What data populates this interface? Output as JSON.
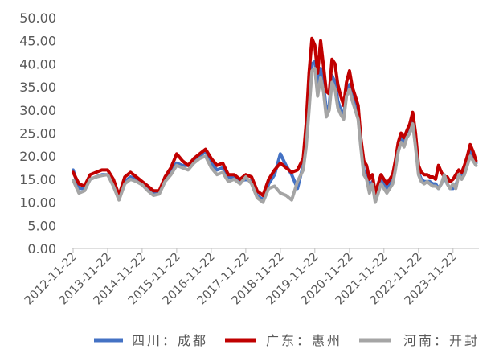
{
  "chart_data": {
    "type": "line",
    "x": [
      "2012-11-22",
      "2013-01-22",
      "2013-03-22",
      "2013-05-22",
      "2013-07-22",
      "2013-09-22",
      "2013-11-22",
      "2014-01-22",
      "2014-03-22",
      "2014-05-22",
      "2014-07-22",
      "2014-09-22",
      "2014-11-22",
      "2015-01-22",
      "2015-03-22",
      "2015-05-22",
      "2015-07-22",
      "2015-09-22",
      "2015-11-22",
      "2016-01-22",
      "2016-03-22",
      "2016-05-22",
      "2016-07-22",
      "2016-09-22",
      "2016-11-22",
      "2017-01-22",
      "2017-03-22",
      "2017-05-22",
      "2017-07-22",
      "2017-09-22",
      "2017-11-22",
      "2018-01-22",
      "2018-03-22",
      "2018-05-22",
      "2018-07-22",
      "2018-09-22",
      "2018-11-22",
      "2019-01-22",
      "2019-03-22",
      "2019-05-22",
      "2019-07-22",
      "2019-08-22",
      "2019-09-22",
      "2019-10-22",
      "2019-11-22",
      "2019-12-22",
      "2020-01-22",
      "2020-02-22",
      "2020-03-22",
      "2020-04-22",
      "2020-05-22",
      "2020-06-22",
      "2020-07-22",
      "2020-08-22",
      "2020-09-22",
      "2020-10-22",
      "2020-11-22",
      "2020-12-22",
      "2021-01-22",
      "2021-02-22",
      "2021-03-22",
      "2021-04-22",
      "2021-05-22",
      "2021-06-22",
      "2021-07-22",
      "2021-08-22",
      "2021-09-22",
      "2021-10-22",
      "2021-11-22",
      "2021-12-22",
      "2022-01-22",
      "2022-02-22",
      "2022-03-22",
      "2022-04-22",
      "2022-05-22",
      "2022-06-22",
      "2022-07-22",
      "2022-08-22",
      "2022-09-22",
      "2022-10-22",
      "2022-11-22",
      "2022-12-22",
      "2023-01-22",
      "2023-02-22",
      "2023-03-22",
      "2023-04-22",
      "2023-05-22",
      "2023-06-22",
      "2023-07-22",
      "2023-08-22",
      "2023-09-22",
      "2023-10-22",
      "2023-11-22",
      "2023-12-22",
      "2024-01-22",
      "2024-02-22",
      "2024-03-22",
      "2024-04-22",
      "2024-05-22",
      "2024-06-22",
      "2024-07-22"
    ],
    "series": [
      {
        "name": "四川：成都",
        "color": "#4472C4",
        "values": [
          17.0,
          13.0,
          13.0,
          15.0,
          15.5,
          16.0,
          16.0,
          14.5,
          11.0,
          14.5,
          15.5,
          15.0,
          14.0,
          13.0,
          12.0,
          12.0,
          15.0,
          17.0,
          18.5,
          18.0,
          18.0,
          19.0,
          20.0,
          21.0,
          18.5,
          17.0,
          17.5,
          15.5,
          15.5,
          14.5,
          15.0,
          14.5,
          11.5,
          10.5,
          14.0,
          16.0,
          20.5,
          18.0,
          16.0,
          13.0,
          18.0,
          24.0,
          33.0,
          40.0,
          40.5,
          35.0,
          39.0,
          35.5,
          30.0,
          31.0,
          37.5,
          36.0,
          32.0,
          30.0,
          29.0,
          33.5,
          35.5,
          33.0,
          31.0,
          29.0,
          22.5,
          17.0,
          16.0,
          13.0,
          14.5,
          11.0,
          13.0,
          15.0,
          14.0,
          13.0,
          14.0,
          15.0,
          18.0,
          22.0,
          24.0,
          23.0,
          24.5,
          26.0,
          28.0,
          23.0,
          16.5,
          15.0,
          14.5,
          14.5,
          14.5,
          14.0,
          14.0,
          13.0,
          14.0,
          15.5,
          14.0,
          13.0,
          13.0,
          13.5,
          16.0,
          15.5,
          17.0,
          19.0,
          21.0,
          20.0,
          18.5
        ]
      },
      {
        "name": "广东：惠州",
        "color": "#C00000",
        "values": [
          16.5,
          14.0,
          13.5,
          16.0,
          16.5,
          17.0,
          17.0,
          15.0,
          11.5,
          15.5,
          16.5,
          15.5,
          14.5,
          13.5,
          12.5,
          12.5,
          15.5,
          17.5,
          20.5,
          19.0,
          18.0,
          19.5,
          20.5,
          21.5,
          19.5,
          18.0,
          18.5,
          16.0,
          16.0,
          15.0,
          16.0,
          15.5,
          12.5,
          11.5,
          15.0,
          17.0,
          18.5,
          17.5,
          16.5,
          17.0,
          19.5,
          27.0,
          38.0,
          45.5,
          44.0,
          38.0,
          45.0,
          39.5,
          34.0,
          33.5,
          41.0,
          40.0,
          35.5,
          33.0,
          31.0,
          36.0,
          38.5,
          35.0,
          33.0,
          31.0,
          24.0,
          19.0,
          18.0,
          15.0,
          16.0,
          12.0,
          14.0,
          16.0,
          15.0,
          14.0,
          15.0,
          16.0,
          19.0,
          23.0,
          25.0,
          24.0,
          25.5,
          27.0,
          29.5,
          25.0,
          18.0,
          16.5,
          16.0,
          16.0,
          15.5,
          15.5,
          15.0,
          18.0,
          16.5,
          15.5,
          15.5,
          14.5,
          15.0,
          16.0,
          17.0,
          16.5,
          18.0,
          20.0,
          22.5,
          21.0,
          19.0
        ]
      },
      {
        "name": "河南：开封",
        "color": "#A5A5A5",
        "values": [
          14.8,
          12.0,
          12.5,
          15.0,
          15.5,
          15.8,
          16.0,
          13.5,
          10.5,
          14.0,
          15.0,
          14.5,
          13.8,
          12.5,
          11.5,
          11.8,
          14.5,
          16.0,
          18.0,
          17.5,
          17.0,
          18.5,
          19.5,
          20.0,
          17.5,
          16.0,
          16.5,
          14.5,
          15.0,
          14.0,
          15.5,
          14.0,
          11.0,
          10.0,
          13.0,
          13.5,
          12.0,
          11.5,
          10.5,
          14.5,
          17.0,
          22.0,
          30.0,
          38.5,
          39.0,
          33.0,
          37.0,
          34.0,
          28.5,
          30.0,
          36.0,
          34.5,
          30.5,
          29.0,
          28.0,
          33.0,
          34.5,
          32.0,
          30.0,
          28.0,
          22.0,
          16.0,
          15.0,
          12.0,
          14.0,
          10.0,
          12.0,
          14.0,
          13.0,
          12.0,
          13.0,
          14.0,
          17.0,
          21.0,
          23.0,
          22.0,
          24.0,
          25.0,
          27.0,
          22.0,
          16.0,
          14.5,
          14.0,
          14.5,
          14.0,
          13.5,
          13.5,
          13.0,
          14.0,
          16.0,
          14.0,
          13.0,
          14.0,
          13.0,
          16.0,
          15.0,
          16.0,
          18.0,
          20.0,
          19.0,
          18.0
        ]
      }
    ],
    "xlim": [
      "2012-11-22",
      "2024-08-22"
    ],
    "ylim": [
      0,
      50
    ],
    "y_tick_labels": [
      "0.00",
      "5.00",
      "10.00",
      "15.00",
      "20.00",
      "25.00",
      "30.00",
      "35.00",
      "40.00",
      "45.00",
      "50.00"
    ],
    "x_tick_labels": [
      "2012-11-22",
      "2013-11-22",
      "2014-11-22",
      "2015-11-22",
      "2016-11-22",
      "2017-11-22",
      "2018-11-22",
      "2019-11-22",
      "2020-11-22",
      "2021-11-22",
      "2022-11-22",
      "2023-11-22"
    ],
    "grid": false,
    "legend_position": "bottom"
  }
}
